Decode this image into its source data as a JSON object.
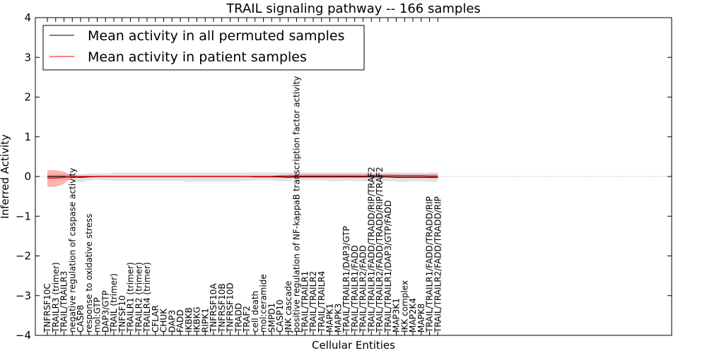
{
  "chart_data": {
    "type": "line",
    "title": "TRAIL signaling pathway -- 166 samples",
    "xlabel": "Cellular Entities",
    "ylabel": "Inferred Activity",
    "ylim": [
      -4,
      4
    ],
    "yticks": [
      -4,
      -3,
      -2,
      -1,
      0,
      1,
      2,
      3,
      4
    ],
    "ytick_labels": [
      "−4",
      "−3",
      "−2",
      "−1",
      "0",
      "1",
      "2",
      "3",
      "4"
    ],
    "grid": false,
    "legend": {
      "position": "top-left",
      "entries": [
        {
          "label": "Mean activity in all permuted samples",
          "color": "#000000"
        },
        {
          "label": "Mean activity in patient samples",
          "color": "#ff0000"
        }
      ]
    },
    "categories": [
      "TNFRSF10C",
      "TRAILR3 (trimer)",
      "TRAIL/TRAILR3",
      "negative regulation of caspase activity",
      "CASP8",
      "response to oxidative stress",
      "mol:GTP",
      "DAP3/GTP",
      "TRAIL (trimer)",
      "TNFSF10",
      "TRAILR1 (trimer)",
      "TRAILR2 (trimer)",
      "TRAILR4 (trimer)",
      "CFLAR",
      "CHUK",
      "DAP3",
      "FADD",
      "IKBKB",
      "IKBKG",
      "RIPK1",
      "TNFRSF10A",
      "TNFRSF10B",
      "TNFRSF10D",
      "TRADD",
      "TRAF2",
      "cell death",
      "mol:ceramide",
      "SMPD1",
      "CASP10",
      "JNK cascade",
      "positive regulation of NF-kappaB transcription factor activity",
      "TRAIL/TRAILR1",
      "TRAIL/TRAILR2",
      "TRAIL/TRAILR4",
      "MAPK1",
      "MAPK3",
      "TRAIL/TRAILR1/DAP3/GTP",
      "TRAIL/TRAILR1/FADD",
      "TRAIL/TRAILR2/FADD",
      "TRAIL/TRAILR1/FADD/TRADD/RIP/TRAF2",
      "TRAIL/TRAILR2/FADD/TRADD/RIP/TRAF2",
      "TRAIL/TRAILR1/DAP3/GTP/FADD",
      "MAP3K1",
      "IKK complex",
      "MAP2K4",
      "MAPK8",
      "TRAIL/TRAILR1/FADD/TRADD/RIP",
      "TRAIL/TRAILR2/FADD/TRADD/RIP"
    ],
    "series": [
      {
        "name": "Mean activity in all permuted samples",
        "color": "#000000",
        "values": [
          0,
          0,
          0,
          -0.01,
          -0.02,
          -0.01,
          0,
          0,
          0,
          0,
          0,
          0,
          0,
          0,
          0,
          0,
          0,
          0,
          0,
          0,
          0,
          0,
          0,
          0,
          0,
          -0.01,
          -0.01,
          -0.01,
          -0.01,
          -0.02,
          -0.01,
          -0.01,
          -0.01,
          -0.01,
          -0.01,
          -0.01,
          -0.01,
          -0.01,
          -0.01,
          -0.01,
          -0.01,
          -0.01,
          -0.02,
          -0.02,
          -0.02,
          -0.02,
          -0.02,
          -0.02
        ],
        "band_upper": [
          0.06,
          0.06,
          0.06,
          0.05,
          0.06,
          0.08,
          0.08,
          0.08,
          0.1,
          0.1,
          0.1,
          0.1,
          0.1,
          0.1,
          0.1,
          0.1,
          0.1,
          0.1,
          0.1,
          0.1,
          0.1,
          0.1,
          0.1,
          0.1,
          0.1,
          0.1,
          0.1,
          0.1,
          0.1,
          0.1,
          0.1,
          0.1,
          0.1,
          0.1,
          0.1,
          0.1,
          0.1,
          0.1,
          0.1,
          0.1,
          0.1,
          0.1,
          0.1,
          0.1,
          0.1,
          0.1,
          0.1,
          0.1
        ],
        "band_lower": [
          -0.06,
          -0.06,
          -0.06,
          -0.1,
          -0.14,
          -0.1,
          -0.08,
          -0.1,
          -0.1,
          -0.12,
          -0.1,
          -0.12,
          -0.1,
          -0.12,
          -0.1,
          -0.12,
          -0.1,
          -0.14,
          -0.12,
          -0.12,
          -0.12,
          -0.12,
          -0.12,
          -0.12,
          -0.1,
          -0.1,
          -0.1,
          -0.1,
          -0.12,
          -0.12,
          -0.1,
          -0.1,
          -0.1,
          -0.1,
          -0.12,
          -0.12,
          -0.1,
          -0.12,
          -0.12,
          -0.12,
          -0.1,
          -0.12,
          -0.12,
          -0.14,
          -0.12,
          -0.12,
          -0.14,
          -0.12
        ]
      },
      {
        "name": "Mean activity in patient samples",
        "color": "#ff0000",
        "values": [
          -0.04,
          -0.04,
          -0.02,
          0,
          0,
          0,
          0,
          0,
          0,
          0,
          0,
          0,
          0,
          0,
          0,
          0,
          0,
          0,
          0,
          0,
          0,
          0,
          0,
          0,
          0,
          0,
          0,
          0,
          0.01,
          0.01,
          0.01,
          0.01,
          0.01,
          0.01,
          0.01,
          0.01,
          0.01,
          0.01,
          0.01,
          0.02,
          0.02,
          0.02,
          0.02,
          0.02,
          0.02,
          0.02,
          0.01,
          0.01
        ],
        "band_upper": [
          0.16,
          0.16,
          0.12,
          0.02,
          0.02,
          0.02,
          0.02,
          0.02,
          0.02,
          0.02,
          0.02,
          0.02,
          0.02,
          0.02,
          0.02,
          0.02,
          0.02,
          0.02,
          0.02,
          0.02,
          0.02,
          0.02,
          0.02,
          0.02,
          0.02,
          0.02,
          0.02,
          0.02,
          0.04,
          0.05,
          0.06,
          0.06,
          0.06,
          0.06,
          0.06,
          0.06,
          0.06,
          0.06,
          0.06,
          0.06,
          0.06,
          0.06,
          0.06,
          0.05,
          0.05,
          0.05,
          0.06,
          0.06
        ],
        "band_lower": [
          -0.26,
          -0.26,
          -0.18,
          -0.02,
          -0.01,
          -0.01,
          -0.01,
          -0.01,
          -0.01,
          -0.01,
          -0.01,
          -0.01,
          -0.01,
          -0.01,
          -0.01,
          -0.01,
          -0.01,
          -0.01,
          -0.01,
          -0.01,
          -0.01,
          -0.01,
          -0.01,
          -0.01,
          -0.01,
          -0.01,
          -0.01,
          -0.01,
          -0.02,
          -0.02,
          -0.02,
          -0.02,
          -0.02,
          -0.02,
          -0.02,
          -0.02,
          -0.02,
          -0.02,
          -0.02,
          -0.02,
          -0.02,
          -0.02,
          -0.02,
          -0.02,
          -0.02,
          -0.02,
          -0.04,
          -0.04
        ]
      }
    ]
  }
}
